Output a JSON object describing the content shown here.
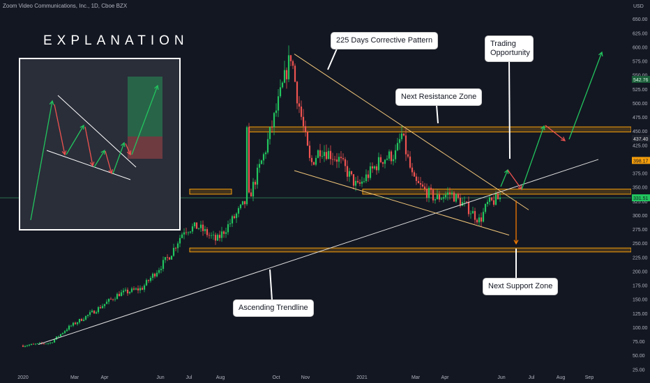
{
  "header": {
    "title": "Zoom Video Communications, Inc., 1D, Cboe BZX",
    "unit": "USD"
  },
  "explanation_title": "EXPLANATION",
  "annotations": {
    "corrective_pattern": "225 Days Corrective Pattern",
    "trading_opportunity": "Trading Opportunity",
    "next_resistance": "Next Resistance Zone",
    "next_support": "Next Support Zone",
    "ascending_trendline": "Ascending Trendline"
  },
  "price_tags": {
    "tag1": "542.76",
    "tag2": "437.40",
    "tag3": "398.17",
    "tag4": "331.51"
  },
  "colors": {
    "up": "#26a69a",
    "up_bright": "#22c55e",
    "down": "#ef5350",
    "zone": "#f59e0b",
    "bg": "#131722",
    "last_price": "#2ecc71"
  },
  "chart_data": {
    "type": "candlestick",
    "title": "Zoom Video Communications, Inc., 1D, Cboe BZX",
    "ylabel": "USD",
    "ylim": [
      25,
      650
    ],
    "x_tick_labels": [
      "2020",
      "Mar",
      "Apr",
      "Jun",
      "Jul",
      "Aug",
      "Oct",
      "Nov",
      "2021",
      "Mar",
      "Apr",
      "Jun",
      "Jul",
      "Aug",
      "Sep"
    ],
    "y_tick_labels": [
      "25.00",
      "50.00",
      "75.00",
      "100.00",
      "125.00",
      "150.00",
      "175.00",
      "200.00",
      "225.00",
      "250.00",
      "275.00",
      "300.00",
      "325.00",
      "350.00",
      "375.00",
      "400.00",
      "425.00",
      "450.00",
      "475.00",
      "500.00",
      "525.00",
      "550.00",
      "575.00",
      "600.00",
      "625.00",
      "650.00"
    ],
    "price_path": [
      [
        "2020-01-02",
        68
      ],
      [
        "2020-02-01",
        73
      ],
      [
        "2020-02-20",
        100
      ],
      [
        "2020-03-20",
        130
      ],
      [
        "2020-04-15",
        160
      ],
      [
        "2020-05-10",
        170
      ],
      [
        "2020-06-10",
        230
      ],
      [
        "2020-06-25",
        275
      ],
      [
        "2020-07-10",
        280
      ],
      [
        "2020-07-30",
        255
      ],
      [
        "2020-08-20",
        300
      ],
      [
        "2020-08-31",
        325
      ],
      [
        "2020-09-01",
        450
      ],
      [
        "2020-09-03",
        330
      ],
      [
        "2020-09-20",
        410
      ],
      [
        "2020-10-05",
        500
      ],
      [
        "2020-10-19",
        588
      ],
      [
        "2020-10-25",
        520
      ],
      [
        "2020-11-09",
        390
      ],
      [
        "2020-11-20",
        420
      ],
      [
        "2020-12-10",
        400
      ],
      [
        "2020-12-30",
        350
      ],
      [
        "2021-01-25",
        400
      ],
      [
        "2021-02-10",
        410
      ],
      [
        "2021-02-16",
        445
      ],
      [
        "2021-03-01",
        360
      ],
      [
        "2021-03-25",
        330
      ],
      [
        "2021-04-10",
        340
      ],
      [
        "2021-05-01",
        310
      ],
      [
        "2021-05-12",
        290
      ],
      [
        "2021-05-20",
        320
      ],
      [
        "2021-06-04",
        332
      ]
    ],
    "zones": [
      {
        "name": "Next Resistance Zone",
        "range": [
          449,
          458
        ]
      },
      {
        "name": "Support Zone",
        "range": [
          338,
          347
        ]
      },
      {
        "name": "Next Support Zone",
        "range": [
          235,
          242
        ]
      }
    ],
    "last_price": 331.51,
    "grid": false
  }
}
